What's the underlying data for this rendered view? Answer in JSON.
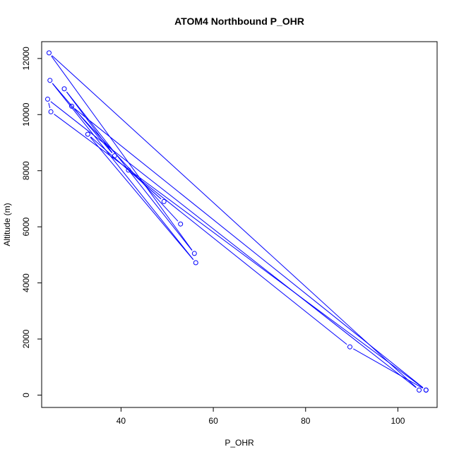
{
  "chart_data": {
    "type": "line",
    "title": "ATOM4 Northbound P_OHR",
    "xlabel": "P_OHR",
    "ylabel": "Altitude (m)",
    "xlim": [
      22.8,
      108.5
    ],
    "ylim": [
      -440,
      12600
    ],
    "x_ticks": [
      40,
      60,
      80,
      100
    ],
    "y_ticks": [
      0,
      2000,
      4000,
      6000,
      8000,
      10000,
      12000
    ],
    "series": [
      {
        "color": "#0000ff",
        "marker": "open-circle",
        "points": [
          {
            "x": 106.1,
            "y": 180
          },
          {
            "x": 24.8,
            "y": 10100
          },
          {
            "x": 24.1,
            "y": 10550
          },
          {
            "x": 104.6,
            "y": 180
          },
          {
            "x": 24.4,
            "y": 12200
          },
          {
            "x": 55.9,
            "y": 5050
          },
          {
            "x": 27.7,
            "y": 10920
          },
          {
            "x": 38.6,
            "y": 8530
          },
          {
            "x": 24.6,
            "y": 11220
          },
          {
            "x": 56.2,
            "y": 4720
          },
          {
            "x": 32.8,
            "y": 9300
          },
          {
            "x": 49.3,
            "y": 6900
          },
          {
            "x": 41.6,
            "y": 8020
          },
          {
            "x": 89.6,
            "y": 1720
          },
          {
            "x": 106.1,
            "y": 180
          },
          {
            "x": 29.3,
            "y": 10300
          },
          {
            "x": 52.9,
            "y": 6100
          }
        ]
      }
    ]
  }
}
